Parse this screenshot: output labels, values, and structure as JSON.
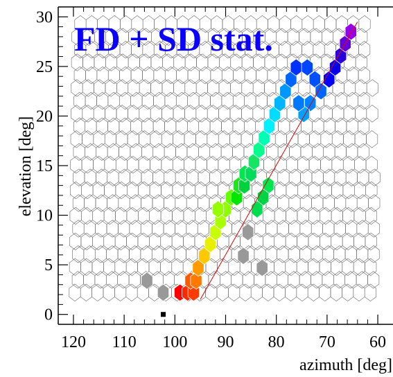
{
  "chart_data": {
    "type": "heatmap",
    "title": "FD + SD stat.",
    "xlabel": "azimuth  [deg]",
    "ylabel": "elevation  [deg]",
    "xlim": [
      123,
      57
    ],
    "ylim": [
      -1,
      31
    ],
    "x_ticks": [
      "120",
      "110",
      "100",
      "90",
      "80",
      "70",
      "60"
    ],
    "x_tick_values": [
      120,
      110,
      100,
      90,
      80,
      70,
      60
    ],
    "y_ticks": [
      "0",
      "5",
      "10",
      "15",
      "20",
      "25",
      "30"
    ],
    "y_tick_values": [
      0,
      5,
      10,
      15,
      20,
      25,
      30
    ],
    "grid": false,
    "fit_line": [
      [
        95.0,
        1.5
      ],
      [
        64.0,
        29.5
      ]
    ],
    "cells": [
      {
        "az": 99.0,
        "el": 2.2,
        "color": "#ff0000"
      },
      {
        "az": 97.5,
        "el": 2.2,
        "color": "#ff2a00"
      },
      {
        "az": 96.3,
        "el": 2.2,
        "color": "#ff3c00"
      },
      {
        "az": 96.9,
        "el": 3.4,
        "color": "#ff5a00"
      },
      {
        "az": 95.8,
        "el": 3.4,
        "color": "#ff7800"
      },
      {
        "az": 95.4,
        "el": 4.7,
        "color": "#ff9a00"
      },
      {
        "az": 94.2,
        "el": 5.9,
        "color": "#ffc800"
      },
      {
        "az": 93.0,
        "el": 7.1,
        "color": "#e8f000"
      },
      {
        "az": 92.0,
        "el": 8.3,
        "color": "#c8ff00"
      },
      {
        "az": 91.0,
        "el": 9.4,
        "color": "#aaff00"
      },
      {
        "az": 90.0,
        "el": 10.6,
        "color": "#8cff00"
      },
      {
        "az": 88.9,
        "el": 11.8,
        "color": "#64ff00"
      },
      {
        "az": 87.8,
        "el": 11.8,
        "color": "#00e600"
      },
      {
        "az": 87.4,
        "el": 13.0,
        "color": "#1ee61e"
      },
      {
        "az": 86.3,
        "el": 13.0,
        "color": "#00d23c"
      },
      {
        "az": 86.2,
        "el": 14.2,
        "color": "#00e650"
      },
      {
        "az": 85.0,
        "el": 14.2,
        "color": "#00dc5a"
      },
      {
        "az": 84.4,
        "el": 15.4,
        "color": "#14e664"
      },
      {
        "az": 83.4,
        "el": 16.6,
        "color": "#00ff8c"
      },
      {
        "az": 82.4,
        "el": 17.8,
        "color": "#00ffb4"
      },
      {
        "az": 81.4,
        "el": 19.0,
        "color": "#00f0ff"
      },
      {
        "az": 80.3,
        "el": 20.2,
        "color": "#00dcff"
      },
      {
        "az": 79.3,
        "el": 21.3,
        "color": "#00b4ff"
      },
      {
        "az": 78.2,
        "el": 22.5,
        "color": "#0096ff"
      },
      {
        "az": 77.1,
        "el": 23.7,
        "color": "#0064ff"
      },
      {
        "az": 76.1,
        "el": 24.9,
        "color": "#0032ff"
      },
      {
        "az": 73.9,
        "el": 24.9,
        "color": "#0046ff"
      },
      {
        "az": 72.4,
        "el": 23.7,
        "color": "#0050ff"
      },
      {
        "az": 71.2,
        "el": 22.5,
        "color": "#0064ff"
      },
      {
        "az": 73.3,
        "el": 21.3,
        "color": "#0082ff"
      },
      {
        "az": 74.6,
        "el": 20.2,
        "color": "#00a0ff"
      },
      {
        "az": 75.6,
        "el": 21.3,
        "color": "#0078ff"
      },
      {
        "az": 69.6,
        "el": 23.7,
        "color": "#0000ff"
      },
      {
        "az": 68.4,
        "el": 24.9,
        "color": "#0a00e6"
      },
      {
        "az": 67.3,
        "el": 26.1,
        "color": "#2800dc"
      },
      {
        "az": 66.4,
        "el": 27.3,
        "color": "#6400dc"
      },
      {
        "az": 65.3,
        "el": 28.5,
        "color": "#9600e6"
      },
      {
        "az": 81.6,
        "el": 13.0,
        "color": "#00e650"
      },
      {
        "az": 82.6,
        "el": 11.8,
        "color": "#00d246"
      },
      {
        "az": 83.8,
        "el": 10.6,
        "color": "#00dc50"
      },
      {
        "az": 91.5,
        "el": 10.6,
        "color": "#96ff00"
      },
      {
        "az": 85.6,
        "el": 8.3,
        "color": "#999999"
      },
      {
        "az": 86.5,
        "el": 5.9,
        "color": "#999999"
      },
      {
        "az": 82.8,
        "el": 4.7,
        "color": "#999999"
      },
      {
        "az": 105.5,
        "el": 3.4,
        "color": "#999999"
      },
      {
        "az": 102.3,
        "el": 2.2,
        "color": "#999999"
      }
    ],
    "markers": [
      {
        "az": 102.3,
        "el": 0.0,
        "shape": "square"
      }
    ]
  }
}
